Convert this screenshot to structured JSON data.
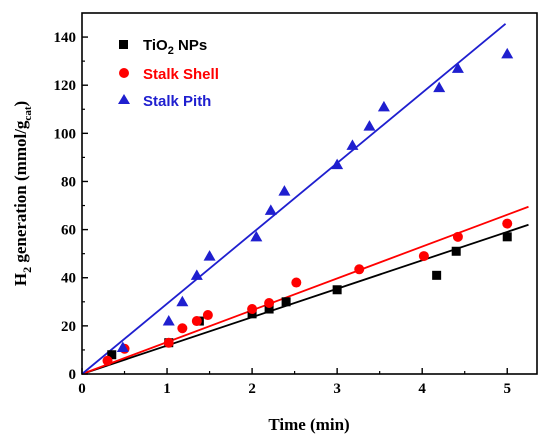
{
  "chart_data": {
    "type": "scatter",
    "xlabel": "Time (min)",
    "ylabel": {
      "main": "H",
      "sub1": "2",
      "mid": " generation (mmol/g",
      "sub2": "cat",
      "end": ")"
    },
    "xlim": [
      0,
      5.35
    ],
    "ylim": [
      0,
      150
    ],
    "xticks": [
      0,
      1,
      2,
      3,
      4,
      5
    ],
    "yticks": [
      0,
      20,
      40,
      60,
      80,
      100,
      120,
      140
    ],
    "grid": false,
    "legend_position": "top-left",
    "series": [
      {
        "name": "TiO",
        "name_sub": "2",
        "name_end": " NPs",
        "marker": "square",
        "color": "#000000",
        "x": [
          0.35,
          1.02,
          1.38,
          2.0,
          2.2,
          2.4,
          3.0,
          4.17,
          4.4,
          5.0
        ],
        "y": [
          8,
          13,
          22,
          25,
          27,
          30,
          35,
          41,
          51,
          57
        ],
        "fit": {
          "x": [
            0,
            5.25
          ],
          "y": [
            0,
            62
          ]
        }
      },
      {
        "name": "Stalk Shell",
        "marker": "circle",
        "color": "#ff0000",
        "x": [
          0.3,
          0.5,
          1.02,
          1.18,
          1.35,
          1.48,
          2.0,
          2.2,
          2.52,
          3.26,
          4.02,
          4.42,
          5.0
        ],
        "y": [
          5.5,
          10.5,
          13,
          19,
          22,
          24.5,
          27,
          29.5,
          38,
          43.5,
          49,
          57,
          62.5
        ],
        "fit": {
          "x": [
            0,
            5.25
          ],
          "y": [
            0,
            69.5
          ]
        }
      },
      {
        "name": "Stalk Pith",
        "marker": "triangle",
        "color": "#1f1fcf",
        "x": [
          0.48,
          1.02,
          1.18,
          1.35,
          1.5,
          2.05,
          2.22,
          2.38,
          3.0,
          3.18,
          3.38,
          3.55,
          4.2,
          4.42,
          5.0
        ],
        "y": [
          11,
          22,
          30,
          41,
          49,
          57,
          68,
          76,
          87,
          95,
          103,
          111,
          119,
          127,
          133
        ],
        "fit": {
          "x": [
            0,
            4.98
          ],
          "y": [
            0,
            145.5
          ]
        }
      }
    ]
  }
}
